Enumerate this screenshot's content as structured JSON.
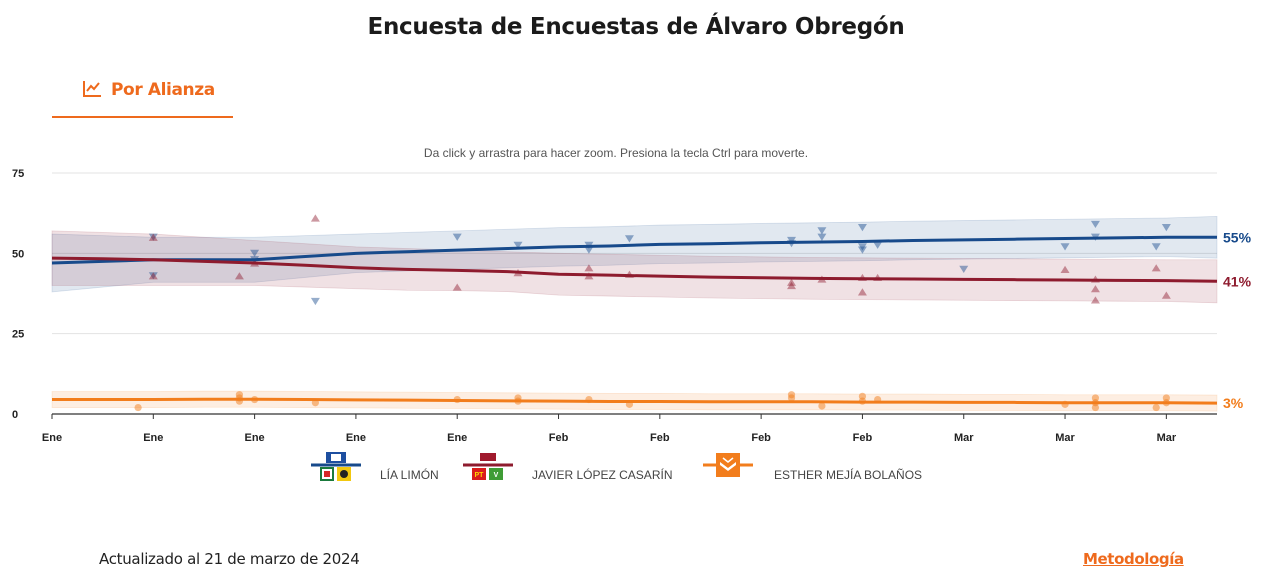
{
  "page": {
    "title": "Encuesta de Encuestas de Álvaro Obregón",
    "tab_label": "Por Alianza",
    "hint": "Da click y arrastra para hacer zoom. Presiona la tecla Ctrl para moverte.",
    "updated": "Actualizado al 21 de marzo de 2024",
    "methodology_link": "Metodología"
  },
  "chart_data": {
    "type": "line",
    "title": "Encuesta de Encuestas de Álvaro Obregón",
    "xlabel": "",
    "ylabel": "",
    "ylim": [
      0,
      75
    ],
    "yticks": [
      0,
      25,
      50,
      75
    ],
    "grid": true,
    "x_tick_labels": [
      "Ene",
      "Ene",
      "Ene",
      "Ene",
      "Ene",
      "Feb",
      "Feb",
      "Feb",
      "Feb",
      "Mar",
      "Mar",
      "Mar"
    ],
    "x": [
      0,
      0.5,
      1,
      1.5,
      2,
      2.5,
      3,
      3.5,
      4,
      4.5,
      5,
      5.5,
      6,
      6.5,
      7,
      7.5,
      8,
      8.5,
      9,
      9.5,
      10,
      10.5,
      11,
      11.5
    ],
    "series": [
      {
        "name": "LÍA LIMÓN",
        "color": "#174a8b",
        "end_label": "55%",
        "values": [
          47,
          47.5,
          48,
          48,
          48,
          49,
          50,
          50.5,
          51,
          51.5,
          52,
          52.3,
          52.8,
          53,
          53.3,
          53.5,
          53.7,
          54,
          54.2,
          54.4,
          54.6,
          54.8,
          55,
          55
        ],
        "band_upper": [
          56,
          55.5,
          55,
          55,
          55,
          55.5,
          56,
          56.5,
          57,
          57.5,
          58,
          58.3,
          58.8,
          59,
          59.3,
          59.5,
          59.7,
          60,
          60.2,
          60.4,
          60.6,
          60.8,
          61,
          61.5
        ],
        "band_lower": [
          38,
          39.5,
          41,
          41,
          41,
          42.5,
          44,
          44.5,
          45,
          45.5,
          46,
          46.3,
          46.8,
          47,
          47.3,
          47.5,
          47.7,
          48,
          48.2,
          48.4,
          48.6,
          48.8,
          49,
          48.5
        ],
        "marker": "down-triangle",
        "points": [
          [
            1,
            55
          ],
          [
            1,
            43
          ],
          [
            2,
            50
          ],
          [
            2,
            48
          ],
          [
            2.6,
            35
          ],
          [
            4,
            55
          ],
          [
            4.6,
            52.5
          ],
          [
            5.3,
            51
          ],
          [
            5.3,
            52.5
          ],
          [
            5.7,
            54.5
          ],
          [
            7.3,
            53
          ],
          [
            7.3,
            54
          ],
          [
            7.6,
            57
          ],
          [
            7.6,
            55
          ],
          [
            8,
            58
          ],
          [
            8,
            52
          ],
          [
            8,
            51
          ],
          [
            8.15,
            52.5
          ],
          [
            9,
            45
          ],
          [
            10,
            52
          ],
          [
            10.3,
            59
          ],
          [
            10.3,
            55
          ],
          [
            10.9,
            52
          ],
          [
            11,
            58
          ]
        ]
      },
      {
        "name": "JAVIER LÓPEZ CASARÍN",
        "color": "#8e1b2e",
        "end_label": "41%",
        "values": [
          48.5,
          48.3,
          48,
          47.5,
          47,
          46.3,
          45.5,
          45,
          44.7,
          44.3,
          43.5,
          43.2,
          42.9,
          42.6,
          42.4,
          42.2,
          42.1,
          42,
          41.9,
          41.8,
          41.7,
          41.6,
          41.5,
          41.3
        ],
        "band_upper": [
          57,
          56.5,
          56,
          55,
          54,
          53,
          52,
          51.5,
          51,
          50.5,
          50,
          49.7,
          49.4,
          49.1,
          48.9,
          48.7,
          48.6,
          48.5,
          48.4,
          48.3,
          48.2,
          48.1,
          48,
          48
        ],
        "band_lower": [
          40,
          40,
          40,
          40,
          40,
          39.5,
          39,
          38.5,
          38.4,
          38.1,
          37,
          36.7,
          36.4,
          36.1,
          35.9,
          35.7,
          35.6,
          35.5,
          35.4,
          35.3,
          35.2,
          35.1,
          35,
          34.6
        ],
        "marker": "up-triangle",
        "points": [
          [
            1,
            55
          ],
          [
            1,
            43
          ],
          [
            1.85,
            43
          ],
          [
            2,
            47
          ],
          [
            2.6,
            61
          ],
          [
            4,
            39.5
          ],
          [
            4.6,
            44
          ],
          [
            5.3,
            43
          ],
          [
            5.3,
            45.5
          ],
          [
            5.7,
            43.5
          ],
          [
            7.3,
            40
          ],
          [
            7.3,
            41
          ],
          [
            7.6,
            42
          ],
          [
            8,
            42.5
          ],
          [
            8,
            38
          ],
          [
            8.15,
            42.5
          ],
          [
            10,
            45
          ],
          [
            10.3,
            42
          ],
          [
            10.3,
            39
          ],
          [
            10.3,
            35.5
          ],
          [
            10.9,
            45.5
          ],
          [
            11,
            37
          ]
        ]
      },
      {
        "name": "ESTHER MEJÍA BOLAÑOS",
        "color": "#f27d1c",
        "end_label": "3%",
        "values": [
          4.5,
          4.5,
          4.5,
          4.6,
          4.6,
          4.5,
          4.4,
          4.3,
          4.2,
          4.1,
          4,
          3.9,
          3.9,
          3.8,
          3.8,
          3.8,
          3.7,
          3.7,
          3.6,
          3.6,
          3.5,
          3.5,
          3.5,
          3.4
        ],
        "band_upper": [
          7,
          7,
          7,
          7.1,
          7.1,
          7,
          6.9,
          6.8,
          6.7,
          6.6,
          6.5,
          6.4,
          6.4,
          6.3,
          6.3,
          6.3,
          6.2,
          6.2,
          6.1,
          6.1,
          6,
          6,
          6,
          5.9
        ],
        "band_lower": [
          2,
          2,
          2,
          2.1,
          2.1,
          2,
          1.9,
          1.8,
          1.7,
          1.6,
          1.5,
          1.4,
          1.4,
          1.3,
          1.3,
          1.3,
          1.2,
          1.2,
          1.1,
          1.1,
          1,
          1,
          1,
          0.9
        ],
        "marker": "circle",
        "points": [
          [
            0.85,
            2
          ],
          [
            1.85,
            6
          ],
          [
            1.85,
            5
          ],
          [
            1.85,
            4
          ],
          [
            2,
            4.5
          ],
          [
            2.6,
            3.5
          ],
          [
            4,
            4.5
          ],
          [
            4.6,
            5
          ],
          [
            4.6,
            4
          ],
          [
            5.3,
            4.5
          ],
          [
            5.7,
            3
          ],
          [
            7.3,
            6
          ],
          [
            7.3,
            5
          ],
          [
            7.6,
            2.5
          ],
          [
            8,
            5.5
          ],
          [
            8,
            4
          ],
          [
            8.15,
            4.5
          ],
          [
            10,
            3
          ],
          [
            10.3,
            5
          ],
          [
            10.3,
            3.5
          ],
          [
            10.3,
            2
          ],
          [
            10.9,
            2
          ],
          [
            11,
            5
          ],
          [
            11,
            3.5
          ]
        ]
      }
    ],
    "legend": [
      "LÍA LIMÓN",
      "JAVIER LÓPEZ CASARÍN",
      "ESTHER MEJÍA BOLAÑOS"
    ]
  },
  "colors": {
    "accent": "#ee6a1d",
    "blue": "#174a8b",
    "red": "#8e1b2e",
    "orange": "#f27d1c"
  },
  "icons": {
    "tab": "line-chart-icon",
    "legend_1": "pan-pri-prd-logo-icon",
    "legend_2": "morena-pt-pvem-logo-icon",
    "legend_3": "movimiento-ciudadano-logo-icon"
  }
}
